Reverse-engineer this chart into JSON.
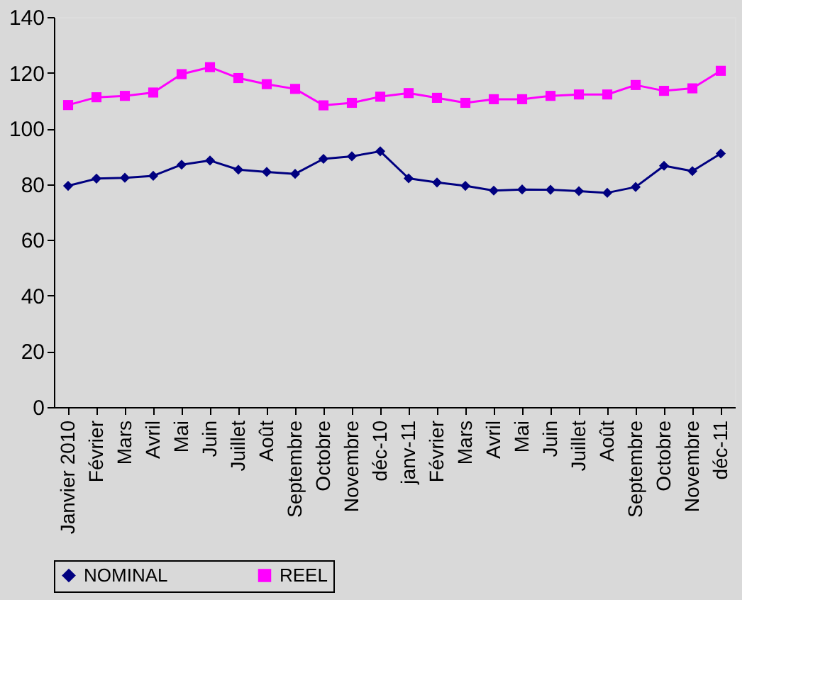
{
  "chart_data": {
    "type": "line",
    "categories": [
      "Janvier 2010",
      "Février",
      "Mars",
      "Avril",
      "Mai",
      "Juin",
      "Juillet",
      "Août",
      "Septembre",
      "Octobre",
      "Novembre",
      "déc-10",
      "janv-11",
      "Février",
      "Mars",
      "Avril",
      "Mai",
      "Juin",
      "Juillet",
      "Août",
      "Septembre",
      "Octobre",
      "Novembre",
      "déc-11"
    ],
    "series": [
      {
        "name": "NOMINAL",
        "color": "#000080",
        "marker": "diamond",
        "values": [
          79.4,
          82,
          82.3,
          83,
          87,
          88.5,
          85.2,
          84.4,
          83.7,
          89.1,
          90,
          91.8,
          82.1,
          80.6,
          79.4,
          77.7,
          78.1,
          78,
          77.5,
          76.9,
          79,
          86.6,
          84.7,
          91
        ]
      },
      {
        "name": "REEL",
        "color": "#ff00ff",
        "marker": "square",
        "values": [
          108.4,
          111.2,
          111.7,
          112.9,
          119.5,
          122,
          118.1,
          115.9,
          114.2,
          108.3,
          109.2,
          111.4,
          112.7,
          111,
          109.2,
          110.5,
          110.5,
          111.7,
          112.2,
          112.2,
          115.6,
          113.5,
          114.4,
          120.7
        ]
      }
    ],
    "ylim": [
      0,
      140
    ],
    "yticks": [
      0,
      20,
      40,
      60,
      80,
      100,
      120,
      140
    ],
    "legend": "bottom"
  }
}
